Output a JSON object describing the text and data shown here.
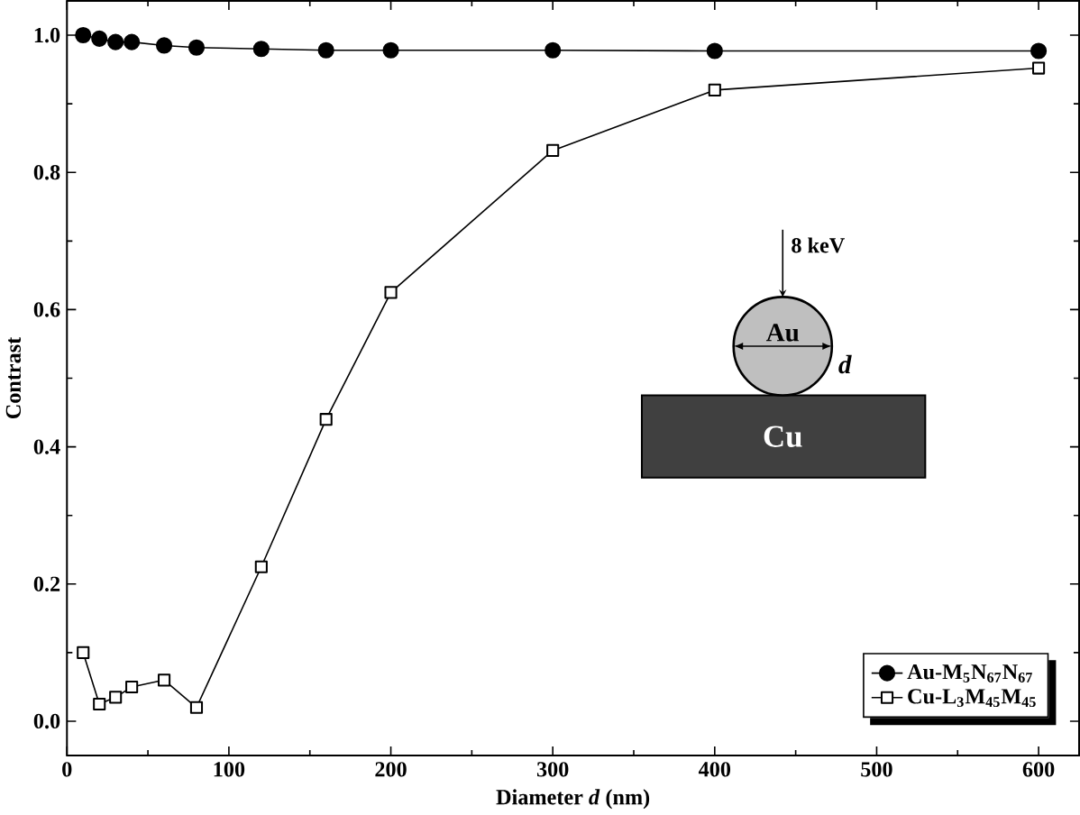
{
  "chart_data": {
    "type": "line",
    "xlabel": "Diameter *d* (nm)",
    "ylabel": "Contrast",
    "x": [
      10,
      20,
      30,
      40,
      60,
      80,
      120,
      160,
      200,
      300,
      400,
      600
    ],
    "series": [
      {
        "name": "Au-M$_{5}$N$_{67}$N$_{67}$",
        "color": "#000000",
        "marker": "circle",
        "values": [
          1.0,
          0.995,
          0.99,
          0.99,
          0.985,
          0.982,
          0.98,
          0.978,
          0.978,
          0.978,
          0.977,
          0.977
        ]
      },
      {
        "name": "Cu-L$_{3}$M$_{45}$M$_{45}$",
        "color": "#000000",
        "marker": "square",
        "values": [
          0.1,
          0.025,
          0.035,
          0.05,
          0.06,
          0.02,
          0.225,
          0.44,
          0.625,
          0.832,
          0.92,
          0.952
        ]
      }
    ],
    "xlim": [
      0,
      625
    ],
    "xticks": [
      0,
      100,
      200,
      300,
      400,
      500,
      600
    ],
    "ylim": [
      -0.05,
      1.05
    ],
    "yticks": [
      {
        "value": 0,
        "label": "0.0"
      },
      {
        "value": 0.2,
        "label": "0.2"
      },
      {
        "value": 0.4,
        "label": "0.4"
      },
      {
        "value": 0.6,
        "label": "0.6"
      },
      {
        "value": 0.8,
        "label": "0.8"
      },
      {
        "value": 1,
        "label": "1.0"
      }
    ],
    "legend": "bottom right",
    "grid": false,
    "line_style": "solid",
    "annotations": [
      "8 keV",
      "Au",
      "*d*",
      "Cu"
    ]
  }
}
